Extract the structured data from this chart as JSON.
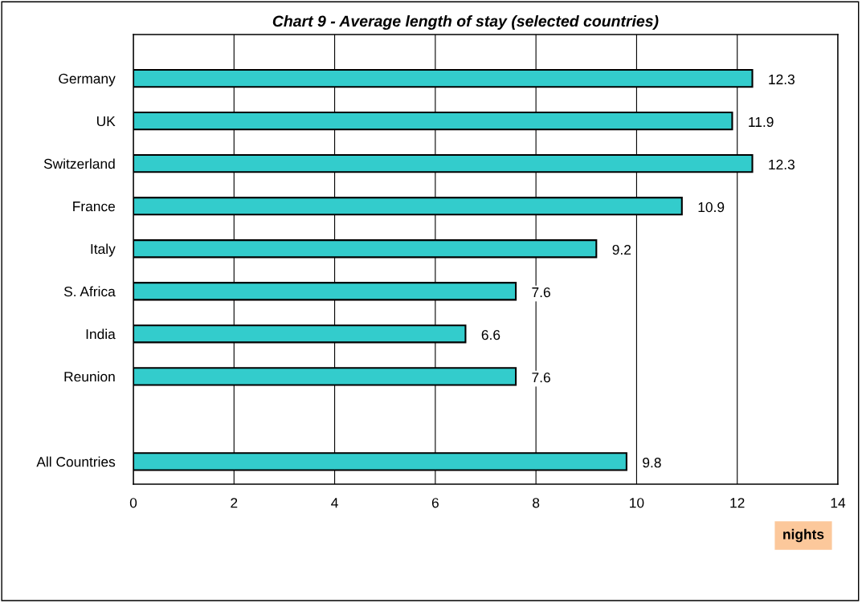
{
  "chart_data": {
    "type": "bar",
    "orientation": "horizontal",
    "title": "Chart 9 - Average length of stay (selected countries)",
    "categories": [
      "Germany",
      "UK",
      "Switzerland",
      "France",
      "Italy",
      "S. Africa",
      "India",
      "Reunion",
      null,
      "All Countries"
    ],
    "values": [
      12.3,
      11.9,
      12.3,
      10.9,
      9.2,
      7.6,
      6.6,
      7.6,
      null,
      9.8
    ],
    "color": "#33cccc",
    "xlim": [
      0,
      14
    ],
    "xticks": [
      0,
      2,
      4,
      6,
      8,
      10,
      12,
      14
    ],
    "xlabel": "nights",
    "grid": "x",
    "data_labels": true
  }
}
